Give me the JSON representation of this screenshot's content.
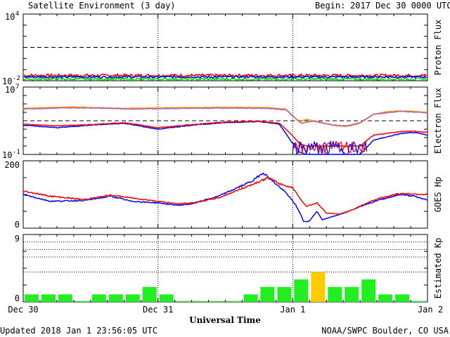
{
  "header": {
    "title": "Satellite Environment (3 day)",
    "begin_label": "Begin:",
    "begin_value": "2017 Dec 30 0000 UTC"
  },
  "footer": {
    "updated": "Updated 2018 Jan  1 23:56:05 UTC",
    "credit": "NOAA/SWPC Boulder, CO USA"
  },
  "chart_data": [
    {
      "type": "line",
      "ylabel": "Proton Flux",
      "yscale": "log",
      "ylim": [
        0.01,
        10000
      ],
      "ytick_labels": {
        "top": {
          "base": "10",
          "exp": "4"
        },
        "bottom": {
          "base": "10",
          "exp": "-2"
        }
      },
      "threshold": 10,
      "series_colors": [
        "#ff0000",
        "#0000ff",
        "#00dd00"
      ],
      "series_levels": [
        0.03,
        0.022,
        0.014
      ],
      "series_noise": [
        0.25,
        0.18,
        0.22
      ]
    },
    {
      "type": "line",
      "ylabel": "Electron Flux",
      "yscale": "log",
      "ylim": [
        0.1,
        10000000
      ],
      "ytick_labels": {
        "top": {
          "base": "10",
          "exp": "7"
        },
        "bottom": {
          "base": "10",
          "exp": "-1"
        }
      },
      "threshold": 1000,
      "series": [
        {
          "color": "#ff9900",
          "points": [
            [
              0,
              30000
            ],
            [
              0.25,
              40000
            ],
            [
              0.4,
              45000
            ],
            [
              0.5,
              38000
            ],
            [
              0.75,
              30000
            ],
            [
              1,
              34000
            ],
            [
              1.25,
              38000
            ],
            [
              1.5,
              40000
            ],
            [
              1.8,
              38000
            ],
            [
              1.95,
              25000
            ],
            [
              2.0,
              3000
            ],
            [
              2.06,
              800
            ],
            [
              2.1,
              1500
            ],
            [
              2.2,
              700
            ],
            [
              2.3,
              300
            ],
            [
              2.4,
              200
            ],
            [
              2.5,
              500
            ],
            [
              2.6,
              6000
            ],
            [
              2.7,
              12000
            ],
            [
              2.85,
              15000
            ],
            [
              3.0,
              10000
            ]
          ]
        },
        {
          "color": "#b060b0",
          "points": [
            [
              0,
              25000
            ],
            [
              0.3,
              33000
            ],
            [
              0.5,
              34000
            ],
            [
              0.8,
              25000
            ],
            [
              1.0,
              27000
            ],
            [
              1.3,
              30000
            ],
            [
              1.5,
              32000
            ],
            [
              1.8,
              30000
            ],
            [
              1.95,
              20000
            ],
            [
              2.02,
              2000
            ],
            [
              2.06,
              500
            ],
            [
              2.15,
              900
            ],
            [
              2.3,
              300
            ],
            [
              2.4,
              250
            ],
            [
              2.5,
              600
            ],
            [
              2.6,
              6000
            ],
            [
              2.8,
              13000
            ],
            [
              3.0,
              9000
            ]
          ]
        },
        {
          "color": "#0000ff",
          "points": [
            [
              0,
              300
            ],
            [
              0.25,
              150
            ],
            [
              0.5,
              300
            ],
            [
              0.75,
              500
            ],
            [
              1.0,
              100
            ],
            [
              1.25,
              300
            ],
            [
              1.5,
              600
            ],
            [
              1.75,
              800
            ],
            [
              1.9,
              400
            ],
            [
              2.0,
              2
            ],
            [
              2.05,
              0.2
            ],
            [
              2.1,
              0.1
            ],
            [
              2.5,
              0.1
            ],
            [
              2.6,
              5
            ],
            [
              2.8,
              30
            ],
            [
              2.9,
              40
            ],
            [
              3.0,
              20
            ]
          ]
        },
        {
          "color": "#ff0000",
          "points": [
            [
              0,
              400
            ],
            [
              0.25,
              250
            ],
            [
              0.5,
              350
            ],
            [
              0.75,
              600
            ],
            [
              1.0,
              150
            ],
            [
              1.25,
              350
            ],
            [
              1.5,
              700
            ],
            [
              1.75,
              900
            ],
            [
              1.9,
              500
            ],
            [
              1.97,
              50
            ],
            [
              2.05,
              2
            ],
            [
              2.1,
              1
            ],
            [
              2.5,
              1
            ],
            [
              2.6,
              20
            ],
            [
              2.8,
              50
            ],
            [
              2.9,
              60
            ],
            [
              3.0,
              40
            ]
          ]
        }
      ],
      "noise_range": [
        2.0,
        2.55
      ],
      "noise_colors": [
        "#ff0000",
        "#0000ff"
      ]
    },
    {
      "type": "line",
      "ylabel": "GOES Hp",
      "ylim": [
        0,
        200
      ],
      "ytick_labels": {
        "top": "200",
        "bottom": "0"
      },
      "series": [
        {
          "color": "#0000ff",
          "points": [
            [
              0,
              100
            ],
            [
              0.2,
              80
            ],
            [
              0.45,
              82
            ],
            [
              0.65,
              95
            ],
            [
              0.8,
              80
            ],
            [
              1.0,
              75
            ],
            [
              1.15,
              68
            ],
            [
              1.25,
              72
            ],
            [
              1.45,
              95
            ],
            [
              1.7,
              140
            ],
            [
              1.78,
              165
            ],
            [
              1.85,
              140
            ],
            [
              1.95,
              105
            ],
            [
              2.02,
              70
            ],
            [
              2.06,
              40
            ],
            [
              2.08,
              20
            ],
            [
              2.12,
              20
            ],
            [
              2.18,
              50
            ],
            [
              2.22,
              25
            ],
            [
              2.3,
              35
            ],
            [
              2.4,
              48
            ],
            [
              2.5,
              65
            ],
            [
              2.65,
              85
            ],
            [
              2.8,
              100
            ],
            [
              2.9,
              95
            ],
            [
              3.0,
              83
            ]
          ]
        },
        {
          "color": "#ff0000",
          "points": [
            [
              0,
              110
            ],
            [
              0.2,
              95
            ],
            [
              0.45,
              85
            ],
            [
              0.65,
              98
            ],
            [
              0.8,
              90
            ],
            [
              1.0,
              80
            ],
            [
              1.15,
              72
            ],
            [
              1.25,
              75
            ],
            [
              1.45,
              90
            ],
            [
              1.7,
              130
            ],
            [
              1.82,
              150
            ],
            [
              1.9,
              132
            ],
            [
              2.0,
              120
            ],
            [
              2.06,
              85
            ],
            [
              2.1,
              65
            ],
            [
              2.18,
              75
            ],
            [
              2.25,
              45
            ],
            [
              2.35,
              42
            ],
            [
              2.45,
              55
            ],
            [
              2.55,
              75
            ],
            [
              2.65,
              90
            ],
            [
              2.8,
              103
            ],
            [
              3.0,
              100
            ]
          ]
        }
      ]
    },
    {
      "type": "bar",
      "ylabel": "Estimated Kp",
      "ylim": [
        0,
        9
      ],
      "ytick_labels": {
        "top": "9",
        "bottom": "0"
      },
      "gridlines": [
        4,
        6,
        7,
        8,
        9
      ],
      "bar_color": "#22ee22",
      "storm_color": "#ffcc00",
      "values": [
        1,
        1,
        1,
        0,
        1,
        1,
        1,
        2,
        1,
        0,
        0,
        0,
        0,
        1,
        2,
        2,
        3,
        4,
        2,
        2,
        3,
        1,
        1,
        0
      ]
    }
  ],
  "x_axis": {
    "label": "Universal Time",
    "ticks": [
      "Dec 30",
      "Dec 31",
      "Jan 1",
      "Jan 2"
    ],
    "days": 3
  }
}
